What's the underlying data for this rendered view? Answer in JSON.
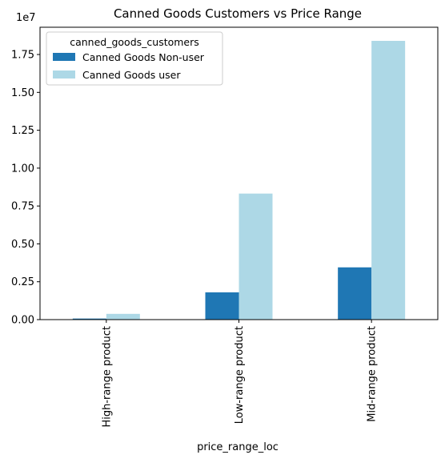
{
  "chart_data": {
    "type": "bar",
    "title": "Canned Goods Customers vs Price Range",
    "xlabel": "price_range_loc",
    "ylabel": "",
    "y_offset_text": "1e7",
    "categories": [
      "High-range product",
      "Low-range product",
      "Mid-range product"
    ],
    "series": [
      {
        "name": "Canned Goods Non-user",
        "color": "#1f77b4",
        "values": [
          70000,
          1800000,
          3450000
        ]
      },
      {
        "name": "Canned Goods user",
        "color": "#add8e6",
        "values": [
          380000,
          8320000,
          18400000
        ]
      }
    ],
    "ylim": [
      0,
      19300000
    ],
    "yticks": [
      0,
      2500000,
      5000000,
      7500000,
      10000000,
      12500000,
      15000000,
      17500000
    ],
    "ytick_labels": [
      "0.00",
      "0.25",
      "0.50",
      "0.75",
      "1.00",
      "1.25",
      "1.50",
      "1.75"
    ],
    "legend": {
      "title": "canned_goods_customers",
      "position": "top-left"
    },
    "grid": false
  }
}
